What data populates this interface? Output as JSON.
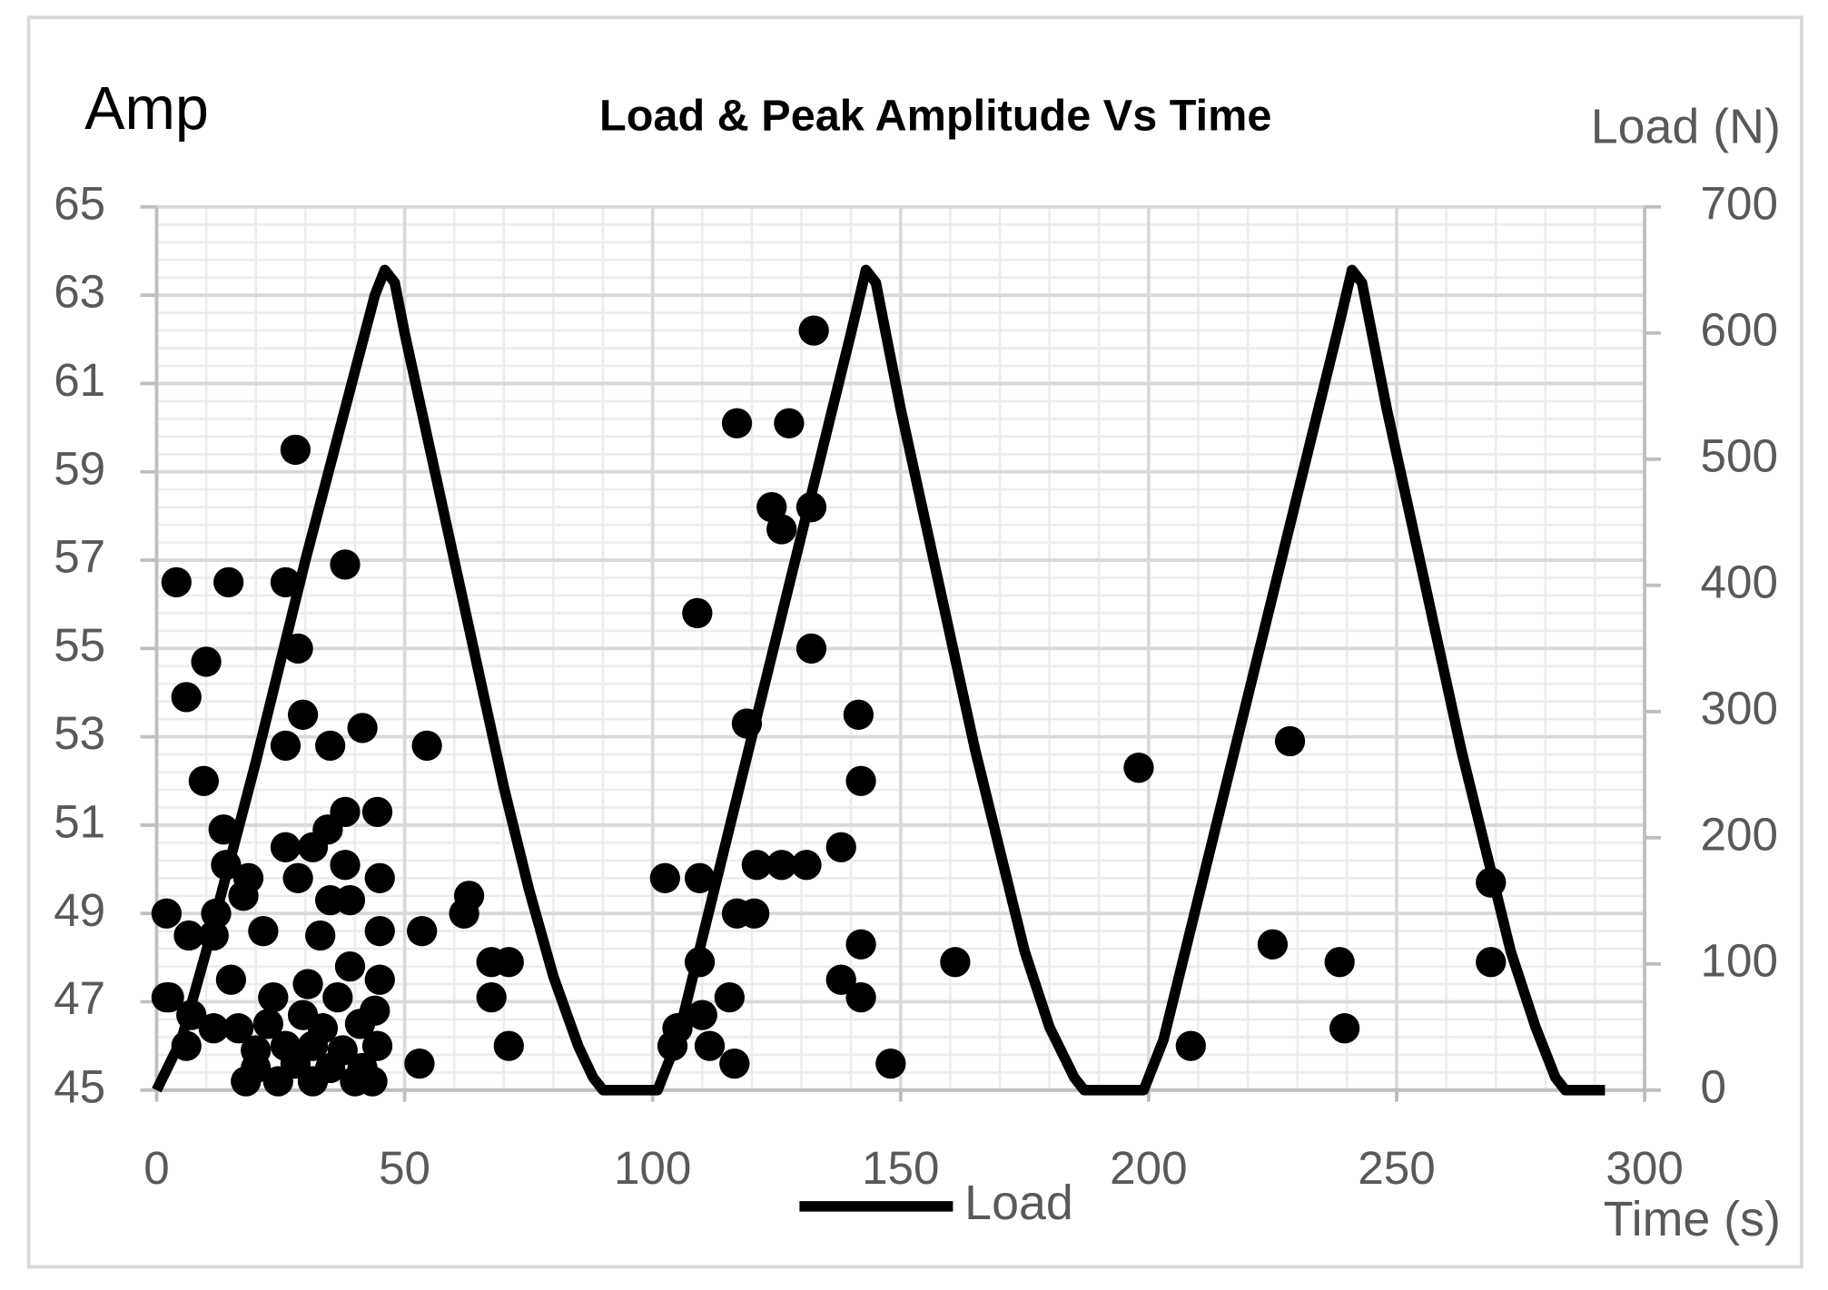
{
  "chart_data": {
    "type": "combo",
    "title": "Load & Peak Amplitude Vs Time",
    "y_label": "Amp",
    "y2_label": "Load (N)",
    "x_label": "Time (s)",
    "xlim": [
      0,
      300
    ],
    "xticks": [
      0,
      50,
      100,
      150,
      200,
      250,
      300
    ],
    "ylim": [
      45,
      65
    ],
    "yticks": [
      45,
      47,
      49,
      51,
      53,
      55,
      57,
      59,
      61,
      63,
      65
    ],
    "y2lim": [
      0,
      700
    ],
    "y2ticks": [
      0,
      100,
      200,
      300,
      400,
      500,
      600,
      700
    ],
    "grid": true,
    "minor_grid": true,
    "legend": "bottom",
    "series": [
      {
        "type": "scatter",
        "color": "#000000",
        "x": [
          4,
          14.5,
          10,
          6,
          9.5,
          2,
          2,
          6.5,
          12,
          13.5,
          14,
          18.5,
          17.5,
          11.5,
          15,
          21.5,
          28,
          26,
          28.5,
          29.5,
          26,
          35,
          38,
          41.5,
          44.5,
          38,
          34.5,
          31.5,
          26,
          28.5,
          38,
          45,
          35,
          39,
          33,
          45,
          39,
          45,
          2.5,
          7,
          6,
          11.5,
          16.5,
          23.5,
          30.5,
          36.5,
          44,
          20,
          26,
          31.5,
          37.5,
          44.5,
          18,
          24.5,
          31.5,
          40,
          43.5,
          22.5,
          29.5,
          33.5,
          41,
          20,
          28,
          35,
          41.5,
          54.5,
          53.5,
          53,
          63,
          62,
          67.5,
          71,
          67.5,
          71,
          102.5,
          109.5,
          109,
          119,
          117,
          127.5,
          132.5,
          124,
          126,
          132,
          132,
          121,
          126,
          131,
          141.5,
          142,
          138,
          117,
          120.5,
          109.5,
          138,
          142,
          142,
          148,
          115.5,
          110,
          105,
          104,
          111.5,
          116.5,
          161,
          198,
          208.5,
          228.5,
          225,
          238.5,
          239.5,
          269,
          269
        ],
        "values": [
          56.5,
          56.5,
          54.7,
          53.9,
          52.0,
          49.0,
          47.1,
          48.5,
          49.0,
          50.9,
          50.1,
          49.8,
          49.4,
          48.5,
          47.5,
          48.6,
          59.5,
          56.5,
          55.0,
          53.5,
          52.8,
          52.8,
          56.9,
          53.2,
          51.3,
          51.3,
          50.9,
          50.5,
          50.5,
          49.8,
          50.1,
          49.8,
          49.3,
          49.3,
          48.5,
          48.6,
          47.8,
          47.5,
          47.1,
          46.7,
          46.0,
          46.4,
          46.4,
          47.1,
          47.4,
          47.1,
          46.8,
          45.9,
          46.0,
          46.0,
          45.9,
          46.0,
          45.2,
          45.2,
          45.2,
          45.2,
          45.2,
          46.5,
          46.7,
          46.4,
          46.5,
          45.5,
          45.6,
          45.5,
          45.5,
          52.8,
          48.6,
          45.6,
          49.4,
          49.0,
          47.9,
          47.9,
          47.1,
          46.0,
          49.8,
          49.8,
          55.8,
          53.3,
          60.1,
          60.1,
          62.2,
          58.2,
          57.7,
          58.2,
          55.0,
          50.1,
          50.1,
          50.1,
          53.5,
          52.0,
          50.5,
          49.0,
          49.0,
          47.9,
          47.5,
          48.3,
          47.1,
          45.6,
          47.1,
          46.7,
          46.4,
          46.0,
          46.0,
          45.6,
          47.9,
          52.3,
          46.0,
          52.9,
          48.3,
          47.9,
          46.4,
          49.7,
          47.9
        ]
      },
      {
        "type": "line",
        "name": "Load",
        "color": "#000000",
        "axis": "y2",
        "x": [
          0,
          5,
          10,
          16,
          20,
          25,
          30,
          35,
          40,
          44,
          46,
          48,
          50,
          55,
          60,
          65,
          70,
          75,
          80,
          85,
          88,
          90,
          101,
          105,
          110,
          115,
          120,
          125,
          130,
          135,
          140,
          143,
          145,
          147,
          150,
          155,
          160,
          165,
          170,
          175,
          180,
          185,
          187,
          199,
          203,
          208,
          213,
          218,
          223,
          228,
          233,
          238,
          241,
          243,
          245,
          248,
          253,
          258,
          263,
          268,
          273,
          278,
          282,
          284,
          292
        ],
        "values": [
          0,
          40,
          110,
          200,
          260,
          340,
          420,
          495,
          570,
          630,
          650,
          640,
          600,
          510,
          420,
          330,
          240,
          160,
          90,
          35,
          10,
          0,
          0,
          40,
          120,
          200,
          280,
          360,
          440,
          520,
          600,
          650,
          640,
          600,
          540,
          450,
          360,
          270,
          190,
          110,
          50,
          10,
          0,
          0,
          40,
          120,
          200,
          280,
          360,
          440,
          520,
          600,
          650,
          640,
          600,
          540,
          450,
          360,
          270,
          190,
          110,
          50,
          10,
          0,
          0
        ]
      }
    ]
  }
}
